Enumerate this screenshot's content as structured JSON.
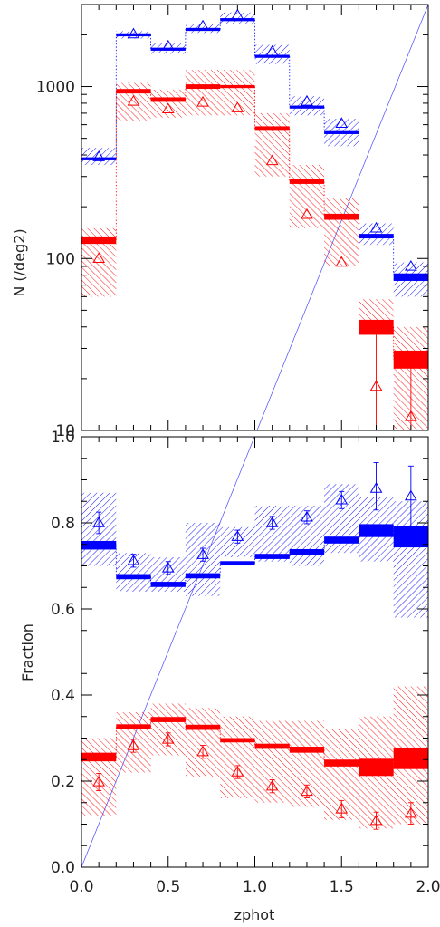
{
  "chart_data": [
    {
      "type": "step-histogram",
      "panel": "top",
      "xlabel": "",
      "ylabel": "N (/deg2)",
      "xlim": [
        0.0,
        2.0
      ],
      "ylim": [
        10,
        3000
      ],
      "yscale": "log",
      "ytick_values": [
        10,
        100,
        1000
      ],
      "ytick_labels": [
        "10",
        "100",
        "1000"
      ],
      "bin_edges": [
        0.0,
        0.2,
        0.4,
        0.6,
        0.8,
        1.0,
        1.2,
        1.4,
        1.6,
        1.8,
        2.0
      ],
      "bin_centers": [
        0.1,
        0.3,
        0.5,
        0.7,
        0.9,
        1.1,
        1.3,
        1.5,
        1.7,
        1.9
      ],
      "series": [
        {
          "color": "#0000ff",
          "bar_values": [
            380,
            2000,
            1650,
            2150,
            2450,
            1500,
            760,
            540,
            135,
            78
          ],
          "bar_thickness": [
            0.02,
            0.02,
            0.02,
            0.02,
            0.02,
            0.02,
            0.02,
            0.02,
            0.03,
            0.05
          ],
          "band_low": [
            350,
            1900,
            1550,
            2050,
            2300,
            1350,
            680,
            450,
            120,
            60
          ],
          "band_high": [
            440,
            2100,
            1800,
            2300,
            2700,
            1750,
            880,
            650,
            160,
            95
          ],
          "marker_values": [
            390,
            2020,
            1720,
            2250,
            2600,
            1600,
            820,
            610,
            150,
            90
          ],
          "marker": "triangle-open"
        },
        {
          "color": "#ff0000",
          "bar_values": [
            128,
            940,
            840,
            1000,
            1000,
            570,
            280,
            175,
            40,
            26
          ],
          "bar_thickness": [
            0.05,
            0.03,
            0.03,
            0.03,
            0.02,
            0.03,
            0.03,
            0.04,
            0.1,
            0.12
          ],
          "band_low": [
            60,
            630,
            660,
            680,
            680,
            300,
            150,
            90,
            36,
            10
          ],
          "band_high": [
            150,
            1050,
            960,
            1250,
            1250,
            700,
            350,
            225,
            58,
            40
          ],
          "marker_values": [
            100,
            820,
            740,
            810,
            750,
            370,
            180,
            95,
            18,
            12
          ],
          "marker_err_low": [
            0,
            0,
            0,
            0,
            0,
            0,
            0,
            0,
            15,
            10
          ],
          "marker_err_high": [
            0,
            0,
            0,
            0,
            0,
            0,
            0,
            0,
            22,
            15
          ],
          "marker": "triangle-open"
        }
      ],
      "reference_line": {
        "x0": 0.0,
        "x1": 2.0,
        "color": "#4a4aff"
      }
    },
    {
      "type": "step-histogram",
      "panel": "bottom",
      "xlabel": "zphot",
      "ylabel": "Fraction",
      "xlim": [
        0.0,
        2.0
      ],
      "ylim": [
        0.0,
        1.0
      ],
      "xtick_values": [
        0.0,
        0.5,
        1.0,
        1.5,
        2.0
      ],
      "xtick_labels": [
        "0.0",
        "0.5",
        "1.0",
        "1.5",
        "2.0"
      ],
      "ytick_values": [
        0.0,
        0.2,
        0.4,
        0.6,
        0.8,
        1.0
      ],
      "ytick_labels": [
        "0.0",
        "0.2",
        "0.4",
        "0.6",
        "0.8",
        "1.0"
      ],
      "bin_edges": [
        0.0,
        0.2,
        0.4,
        0.6,
        0.8,
        1.0,
        1.2,
        1.4,
        1.6,
        1.8,
        2.0
      ],
      "bin_centers": [
        0.1,
        0.3,
        0.5,
        0.7,
        0.9,
        1.1,
        1.3,
        1.5,
        1.7,
        1.9
      ],
      "series": [
        {
          "color": "#0000ff",
          "bar_values": [
            0.748,
            0.675,
            0.657,
            0.677,
            0.706,
            0.722,
            0.732,
            0.76,
            0.782,
            0.768
          ],
          "bar_thickness": [
            0.02,
            0.012,
            0.012,
            0.012,
            0.01,
            0.012,
            0.014,
            0.016,
            0.03,
            0.05
          ],
          "band_low": [
            0.7,
            0.64,
            0.64,
            0.63,
            0.72,
            0.71,
            0.7,
            0.73,
            0.71,
            0.58
          ],
          "band_high": [
            0.87,
            0.73,
            0.72,
            0.8,
            0.79,
            0.84,
            0.84,
            0.89,
            0.86,
            0.85
          ],
          "marker_values": [
            0.8,
            0.712,
            0.695,
            0.726,
            0.768,
            0.8,
            0.813,
            0.853,
            0.88,
            0.862
          ],
          "marker_err_low": [
            0.025,
            0.015,
            0.015,
            0.015,
            0.015,
            0.015,
            0.015,
            0.02,
            0.05,
            0.07
          ],
          "marker_err_high": [
            0.025,
            0.015,
            0.015,
            0.015,
            0.015,
            0.015,
            0.015,
            0.02,
            0.06,
            0.07
          ],
          "marker": "triangle-open"
        },
        {
          "color": "#ff0000",
          "bar_values": [
            0.256,
            0.326,
            0.343,
            0.325,
            0.295,
            0.281,
            0.273,
            0.242,
            0.232,
            0.253
          ],
          "bar_thickness": [
            0.02,
            0.012,
            0.012,
            0.012,
            0.01,
            0.012,
            0.014,
            0.016,
            0.04,
            0.05
          ],
          "band_low": [
            0.12,
            0.22,
            0.26,
            0.21,
            0.16,
            0.15,
            0.14,
            0.11,
            0.09,
            0.1
          ],
          "band_high": [
            0.3,
            0.36,
            0.38,
            0.37,
            0.35,
            0.34,
            0.34,
            0.32,
            0.35,
            0.42
          ],
          "marker_values": [
            0.198,
            0.282,
            0.297,
            0.268,
            0.221,
            0.188,
            0.176,
            0.135,
            0.108,
            0.125
          ],
          "marker_err_low": [
            0.02,
            0.015,
            0.015,
            0.015,
            0.015,
            0.015,
            0.015,
            0.02,
            0.02,
            0.025
          ],
          "marker_err_high": [
            0.02,
            0.015,
            0.015,
            0.015,
            0.015,
            0.015,
            0.015,
            0.02,
            0.02,
            0.025
          ],
          "marker": "triangle-open"
        }
      ],
      "reference_line": {
        "x0": 0.0,
        "x1": 2.0,
        "color": "#4a4aff"
      }
    }
  ]
}
